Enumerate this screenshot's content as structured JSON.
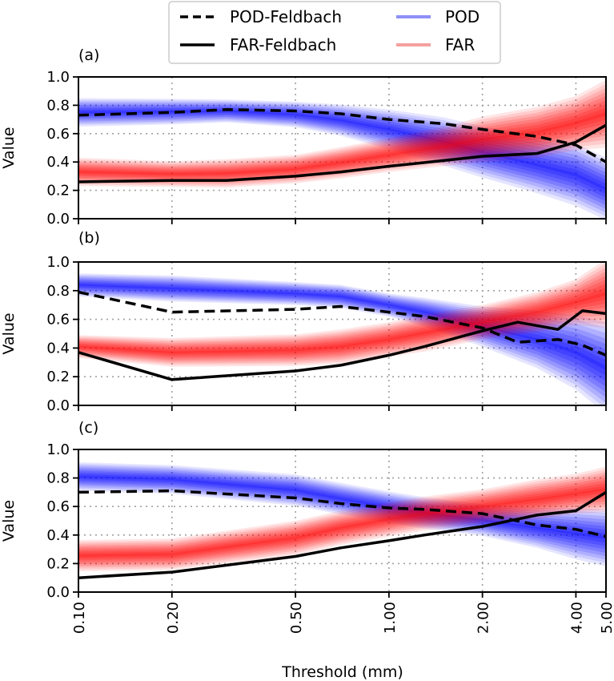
{
  "legend": {
    "entries": [
      {
        "label": "POD-Feldbach",
        "style": "dashed",
        "color": "#000000"
      },
      {
        "label": "FAR-Feldbach",
        "style": "solid",
        "color": "#000000"
      },
      {
        "label": "POD",
        "style": "band",
        "color": "#8f8ff7"
      },
      {
        "label": "FAR",
        "style": "band",
        "color": "#f4a0a0"
      }
    ]
  },
  "xlabel": "Threshold (mm)",
  "ylabel": "Value",
  "colors": {
    "pod_band": "#0000ff",
    "far_band": "#ff0000",
    "feldbach": "#000000",
    "grid": "#a0a0a0"
  },
  "chart_data": [
    {
      "type": "line",
      "panel_label": "(a)",
      "x_scale": "log",
      "xlim": [
        0.1,
        5.0
      ],
      "ylim": [
        0.0,
        1.0
      ],
      "x_ticks": [
        0.1,
        0.2,
        0.5,
        1.0,
        2.0,
        4.0,
        5.0
      ],
      "x_tick_labels": [
        "0.10",
        "0.20",
        "0.50",
        "1.00",
        "2.00",
        "4.00",
        "5.00"
      ],
      "y_ticks": [
        0.0,
        0.2,
        0.4,
        0.6,
        0.8,
        1.0
      ],
      "y_tick_labels": [
        "0.0",
        "0.2",
        "0.4",
        "0.6",
        "0.8",
        "1.0"
      ],
      "grid": true,
      "series": [
        {
          "name": "POD-Feldbach",
          "style": "dashed",
          "x": [
            0.1,
            0.2,
            0.3,
            0.5,
            0.7,
            1.0,
            1.5,
            2.0,
            3.0,
            4.0,
            5.0
          ],
          "y": [
            0.73,
            0.75,
            0.77,
            0.76,
            0.74,
            0.7,
            0.67,
            0.63,
            0.58,
            0.52,
            0.4
          ]
        },
        {
          "name": "FAR-Feldbach",
          "style": "solid",
          "x": [
            0.1,
            0.2,
            0.3,
            0.5,
            0.7,
            1.0,
            1.5,
            2.0,
            3.0,
            4.0,
            5.0
          ],
          "y": [
            0.26,
            0.27,
            0.27,
            0.3,
            0.33,
            0.37,
            0.41,
            0.44,
            0.46,
            0.54,
            0.66
          ]
        },
        {
          "name": "POD",
          "style": "band",
          "x": [
            0.1,
            0.2,
            0.3,
            0.5,
            0.7,
            1.0,
            1.5,
            2.0,
            3.0,
            4.0,
            5.0
          ],
          "lower": [
            0.7,
            0.71,
            0.72,
            0.69,
            0.64,
            0.56,
            0.46,
            0.38,
            0.28,
            0.2,
            0.1
          ],
          "upper": [
            0.8,
            0.8,
            0.8,
            0.78,
            0.75,
            0.7,
            0.63,
            0.56,
            0.48,
            0.42,
            0.32
          ]
        },
        {
          "name": "FAR",
          "style": "band",
          "x": [
            0.1,
            0.2,
            0.3,
            0.5,
            0.7,
            1.0,
            1.5,
            2.0,
            3.0,
            4.0,
            5.0
          ],
          "lower": [
            0.28,
            0.27,
            0.27,
            0.3,
            0.34,
            0.39,
            0.44,
            0.48,
            0.52,
            0.58,
            0.62
          ],
          "upper": [
            0.38,
            0.36,
            0.37,
            0.4,
            0.45,
            0.51,
            0.58,
            0.64,
            0.7,
            0.77,
            0.86
          ]
        }
      ]
    },
    {
      "type": "line",
      "panel_label": "(b)",
      "x_scale": "log",
      "xlim": [
        0.1,
        5.0
      ],
      "ylim": [
        0.0,
        1.0
      ],
      "x_ticks": [
        0.1,
        0.2,
        0.5,
        1.0,
        2.0,
        4.0,
        5.0
      ],
      "x_tick_labels": [
        "0.10",
        "0.20",
        "0.50",
        "1.00",
        "2.00",
        "4.00",
        "5.00"
      ],
      "y_ticks": [
        0.0,
        0.2,
        0.4,
        0.6,
        0.8,
        1.0
      ],
      "y_tick_labels": [
        "0.0",
        "0.2",
        "0.4",
        "0.6",
        "0.8",
        "1.0"
      ],
      "grid": true,
      "series": [
        {
          "name": "POD-Feldbach",
          "style": "dashed",
          "x": [
            0.1,
            0.2,
            0.5,
            0.7,
            1.0,
            1.3,
            2.0,
            2.6,
            3.5,
            4.2,
            5.0
          ],
          "y": [
            0.79,
            0.65,
            0.67,
            0.69,
            0.65,
            0.62,
            0.54,
            0.44,
            0.46,
            0.42,
            0.35
          ]
        },
        {
          "name": "FAR-Feldbach",
          "style": "solid",
          "x": [
            0.1,
            0.2,
            0.5,
            0.7,
            1.0,
            1.3,
            2.0,
            2.6,
            3.5,
            4.2,
            5.0
          ],
          "y": [
            0.37,
            0.18,
            0.24,
            0.28,
            0.35,
            0.41,
            0.52,
            0.58,
            0.53,
            0.66,
            0.64
          ]
        },
        {
          "name": "POD",
          "style": "band",
          "x": [
            0.1,
            0.2,
            0.5,
            0.7,
            1.0,
            1.3,
            2.0,
            3.0,
            4.0,
            5.0
          ],
          "lower": [
            0.8,
            0.77,
            0.74,
            0.72,
            0.66,
            0.6,
            0.48,
            0.36,
            0.24,
            0.1
          ],
          "upper": [
            0.88,
            0.86,
            0.82,
            0.8,
            0.74,
            0.7,
            0.62,
            0.56,
            0.5,
            0.42
          ]
        },
        {
          "name": "FAR",
          "style": "band",
          "x": [
            0.1,
            0.2,
            0.5,
            0.7,
            1.0,
            1.3,
            2.0,
            3.0,
            4.0,
            5.0
          ],
          "lower": [
            0.37,
            0.32,
            0.33,
            0.35,
            0.4,
            0.44,
            0.52,
            0.58,
            0.64,
            0.66
          ],
          "upper": [
            0.45,
            0.42,
            0.44,
            0.47,
            0.52,
            0.57,
            0.64,
            0.72,
            0.8,
            0.9
          ]
        }
      ]
    },
    {
      "type": "line",
      "panel_label": "(c)",
      "x_scale": "log",
      "xlim": [
        0.1,
        5.0
      ],
      "ylim": [
        0.0,
        1.0
      ],
      "x_ticks": [
        0.1,
        0.2,
        0.5,
        1.0,
        2.0,
        4.0,
        5.0
      ],
      "x_tick_labels": [
        "0.10",
        "0.20",
        "0.50",
        "1.00",
        "2.00",
        "4.00",
        "5.00"
      ],
      "y_ticks": [
        0.0,
        0.2,
        0.4,
        0.6,
        0.8,
        1.0
      ],
      "y_tick_labels": [
        "0.0",
        "0.2",
        "0.4",
        "0.6",
        "0.8",
        "1.0"
      ],
      "grid": true,
      "series": [
        {
          "name": "POD-Feldbach",
          "style": "dashed",
          "x": [
            0.1,
            0.2,
            0.5,
            0.7,
            1.0,
            1.3,
            2.0,
            3.0,
            4.0,
            5.0
          ],
          "y": [
            0.7,
            0.71,
            0.66,
            0.62,
            0.59,
            0.58,
            0.55,
            0.47,
            0.44,
            0.39
          ]
        },
        {
          "name": "FAR-Feldbach",
          "style": "solid",
          "x": [
            0.1,
            0.2,
            0.5,
            0.7,
            1.0,
            1.3,
            2.0,
            3.0,
            4.0,
            5.0
          ],
          "y": [
            0.1,
            0.14,
            0.25,
            0.31,
            0.36,
            0.4,
            0.46,
            0.54,
            0.57,
            0.7
          ]
        },
        {
          "name": "POD",
          "style": "band",
          "x": [
            0.1,
            0.2,
            0.5,
            0.7,
            1.0,
            1.3,
            2.0,
            3.0,
            4.0,
            5.0
          ],
          "lower": [
            0.76,
            0.74,
            0.66,
            0.6,
            0.54,
            0.5,
            0.45,
            0.38,
            0.32,
            0.28
          ],
          "upper": [
            0.86,
            0.84,
            0.77,
            0.71,
            0.65,
            0.61,
            0.56,
            0.52,
            0.5,
            0.48
          ]
        },
        {
          "name": "FAR",
          "style": "band",
          "x": [
            0.1,
            0.2,
            0.5,
            0.7,
            1.0,
            1.3,
            2.0,
            3.0,
            4.0,
            5.0
          ],
          "lower": [
            0.2,
            0.21,
            0.32,
            0.39,
            0.45,
            0.49,
            0.54,
            0.58,
            0.62,
            0.64
          ],
          "upper": [
            0.31,
            0.32,
            0.44,
            0.51,
            0.57,
            0.61,
            0.66,
            0.72,
            0.76,
            0.8
          ]
        }
      ]
    }
  ]
}
